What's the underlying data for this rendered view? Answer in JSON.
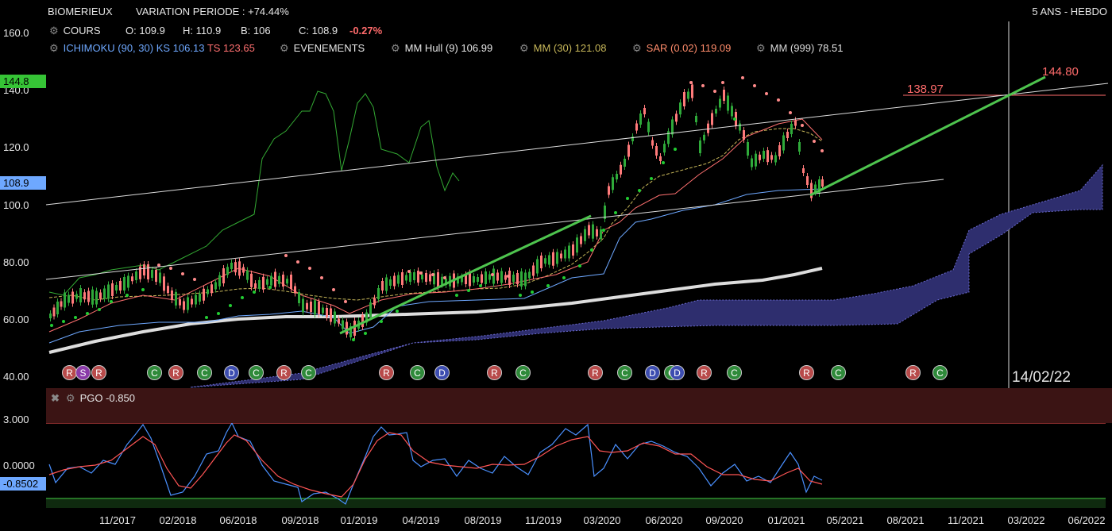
{
  "header": {
    "instrument": "BIOMERIEUX",
    "variation": "VARIATION PERIODE : +74.44%",
    "timeframe": "5 ANS - HEBDO"
  },
  "legend_row1": {
    "label": "COURS",
    "open": "O: 109.9",
    "high": "H: 110.9",
    "low": "B: 106",
    "close": "C: 108.9",
    "change": "-0.27%"
  },
  "legend_row2": {
    "ichimoku": "ICHIMOKU (90, 30)",
    "ks": "KS 106.13",
    "ts": "TS 123.65",
    "events": "EVENEMENTS",
    "hull": "MM Hull (9)",
    "hull_val": "106.99",
    "mm30": "MM (30)",
    "mm30_val": "121.08",
    "sar": "SAR (0.02)",
    "sar_val": "119.09",
    "mm999": "MM (999)",
    "mm999_val": "78.51"
  },
  "price_tags": {
    "green": "144.8",
    "blue": "108.9"
  },
  "annotations": {
    "level_138": "138.97",
    "target": "144.80",
    "date": "14/02/22"
  },
  "y_labels": [
    "160.0",
    "140.0",
    "120.0",
    "100.0",
    "80.00",
    "60.00",
    "40.00"
  ],
  "x_labels": [
    "11/2017",
    "02/2018",
    "06/2018",
    "09/2018",
    "01/2019",
    "04/2019",
    "08/2019",
    "11/2019",
    "03/2020",
    "06/2020",
    "09/2020",
    "01/2021",
    "05/2021",
    "08/2021",
    "11/2021",
    "03/2022",
    "06/2022"
  ],
  "events": [
    {
      "t": "R",
      "x": 87
    },
    {
      "t": "S",
      "x": 104
    },
    {
      "t": "R",
      "x": 124
    },
    {
      "t": "C",
      "x": 194
    },
    {
      "t": "R",
      "x": 221
    },
    {
      "t": "C",
      "x": 257
    },
    {
      "t": "D",
      "x": 291
    },
    {
      "t": "C",
      "x": 322
    },
    {
      "t": "R",
      "x": 357
    },
    {
      "t": "C",
      "x": 388
    },
    {
      "t": "R",
      "x": 486
    },
    {
      "t": "C",
      "x": 525
    },
    {
      "t": "D",
      "x": 556
    },
    {
      "t": "R",
      "x": 622
    },
    {
      "t": "C",
      "x": 658
    },
    {
      "t": "R",
      "x": 749
    },
    {
      "t": "C",
      "x": 786
    },
    {
      "t": "D",
      "x": 821
    },
    {
      "t": "C",
      "x": 845
    },
    {
      "t": "D",
      "x": 852
    },
    {
      "t": "R",
      "x": 886
    },
    {
      "t": "C",
      "x": 924
    },
    {
      "t": "R",
      "x": 1015
    },
    {
      "t": "C",
      "x": 1055
    },
    {
      "t": "R",
      "x": 1149
    },
    {
      "t": "C",
      "x": 1183
    }
  ],
  "pgo": {
    "title": "PGO -0.850",
    "y_labels": [
      "3.000",
      "0.0000"
    ],
    "current": "-0.8502"
  },
  "colors": {
    "up": "#2faa3a",
    "down": "#ff7a7a",
    "cloud": "#2e2e6e",
    "trend": "#4ec44e",
    "sar": "#ff8a8a",
    "sar_up": "#22cc33",
    "ks": "#6ea8ff",
    "ts": "#ff7070"
  },
  "chart_data": {
    "type": "candlestick",
    "y_range": [
      40,
      160
    ],
    "series": [
      {
        "name": "COURS",
        "dates": [
          "10/2017",
          "11/2017",
          "02/2018",
          "06/2018",
          "09/2018",
          "01/2019",
          "04/2019",
          "08/2019",
          "11/2019",
          "03/2020",
          "06/2020",
          "09/2020",
          "01/2021",
          "04/2021"
        ],
        "close": [
          62,
          70,
          66,
          78,
          62,
          56,
          75,
          74,
          78,
          93,
          138,
          125,
          125,
          108.9
        ]
      },
      {
        "name": "MM (999)",
        "value_last": 78.51
      },
      {
        "name": "PGO",
        "value_last": -0.8502
      }
    ],
    "levels": [
      138.97,
      144.8
    ]
  }
}
